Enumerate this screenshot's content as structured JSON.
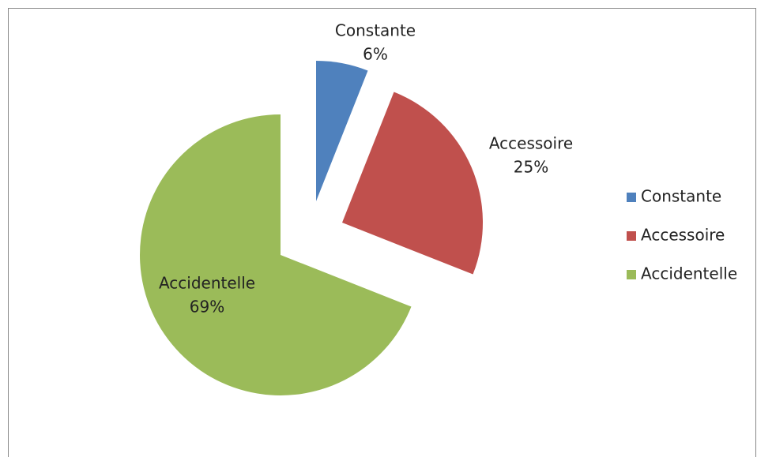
{
  "chart_data": {
    "type": "pie",
    "categories": [
      "Constante",
      "Accessoire",
      "Accidentelle"
    ],
    "values": [
      6,
      25,
      69
    ],
    "value_labels": [
      "6%",
      "25%",
      "69%"
    ],
    "colors": [
      "#4f81bd",
      "#c0504d",
      "#9bbb59"
    ],
    "legend": "right"
  }
}
